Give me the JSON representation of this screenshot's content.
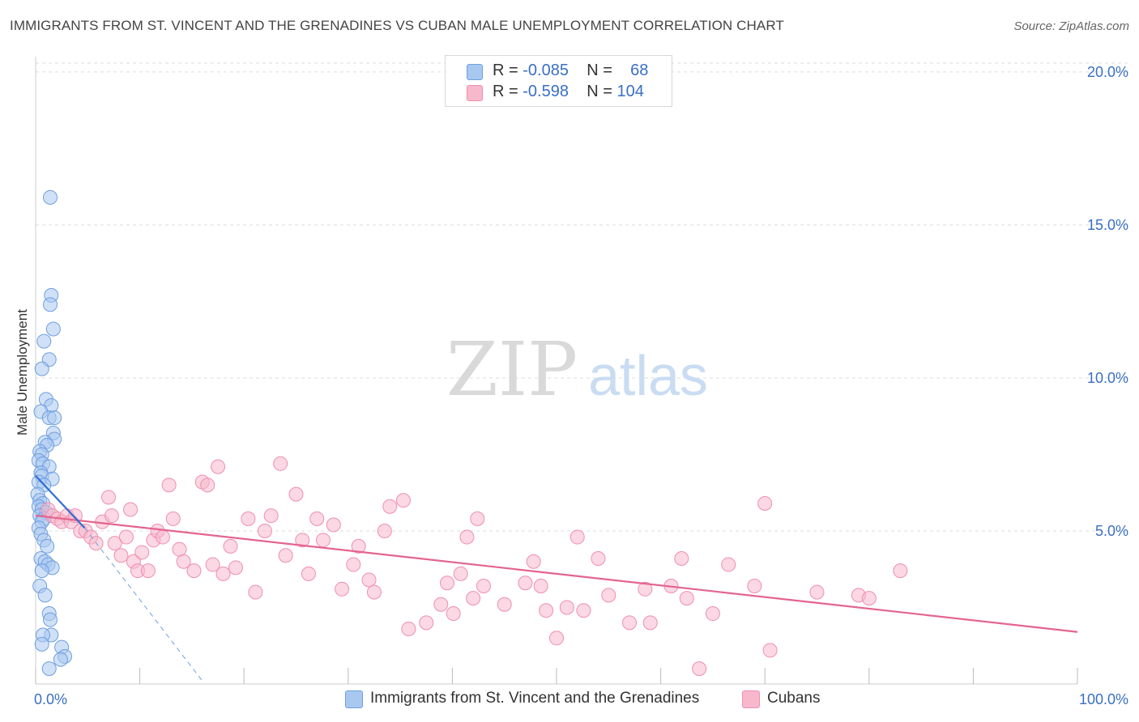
{
  "title": "IMMIGRANTS FROM ST. VINCENT AND THE GRENADINES VS CUBAN MALE UNEMPLOYMENT CORRELATION CHART",
  "source": "Source: ZipAtlas.com",
  "watermark": {
    "zip": "ZIP",
    "atlas": "atlas"
  },
  "legend": {
    "rows": [
      {
        "r_label": "R =",
        "r_value": "-0.085",
        "n_label": "N =",
        "n_value": "68"
      },
      {
        "r_label": "R =",
        "r_value": "-0.598",
        "n_label": "N =",
        "n_value": "104"
      }
    ]
  },
  "bottom_legend": {
    "series1": "Immigrants from St. Vincent and the Grenadines",
    "series2": "Cubans"
  },
  "colors": {
    "series1_fill": "#a9c8f0",
    "series1_stroke": "#6f9ee0",
    "series1_line": "#2f6fd1",
    "series2_fill": "#f7b8cc",
    "series2_stroke": "#ee8fae",
    "series2_line": "#e3648f",
    "tick_label": "#3a6fc4",
    "grid": "#dddddd"
  },
  "chart_data": {
    "type": "scatter",
    "xlabel": "",
    "ylabel": "Male Unemployment",
    "xlim": [
      0,
      100
    ],
    "ylim": [
      0,
      20.5
    ],
    "x_tick_labels": [
      {
        "value": 0,
        "label": "0.0%"
      },
      {
        "value": 100,
        "label": "100.0%"
      }
    ],
    "y_tick_labels": [
      {
        "value": 5,
        "label": "5.0%"
      },
      {
        "value": 10,
        "label": "10.0%"
      },
      {
        "value": 15,
        "label": "15.0%"
      },
      {
        "value": 20,
        "label": "20.0%"
      }
    ],
    "grid": true,
    "legend_position": "top-center",
    "series": [
      {
        "name": "Immigrants from St. Vincent and the Grenadines",
        "points": [
          [
            1.4,
            15.9
          ],
          [
            1.5,
            12.7
          ],
          [
            1.4,
            12.4
          ],
          [
            1.7,
            11.6
          ],
          [
            0.8,
            11.2
          ],
          [
            1.3,
            10.6
          ],
          [
            0.6,
            10.3
          ],
          [
            1.0,
            9.3
          ],
          [
            1.5,
            9.1
          ],
          [
            0.5,
            8.9
          ],
          [
            1.3,
            8.7
          ],
          [
            1.8,
            8.7
          ],
          [
            1.7,
            8.2
          ],
          [
            1.8,
            8.0
          ],
          [
            0.9,
            7.9
          ],
          [
            1.1,
            7.8
          ],
          [
            0.4,
            7.6
          ],
          [
            0.6,
            7.5
          ],
          [
            0.3,
            7.3
          ],
          [
            0.7,
            7.2
          ],
          [
            1.3,
            7.1
          ],
          [
            0.5,
            6.9
          ],
          [
            0.6,
            6.8
          ],
          [
            1.6,
            6.7
          ],
          [
            0.3,
            6.6
          ],
          [
            0.8,
            6.5
          ],
          [
            0.2,
            6.2
          ],
          [
            0.4,
            6.0
          ],
          [
            0.7,
            5.9
          ],
          [
            0.3,
            5.8
          ],
          [
            0.6,
            5.7
          ],
          [
            1.0,
            5.6
          ],
          [
            0.4,
            5.5
          ],
          [
            0.8,
            5.4
          ],
          [
            0.6,
            5.3
          ],
          [
            0.3,
            5.1
          ],
          [
            0.5,
            4.9
          ],
          [
            0.8,
            4.7
          ],
          [
            1.1,
            4.5
          ],
          [
            0.5,
            4.1
          ],
          [
            0.9,
            4.0
          ],
          [
            1.2,
            3.9
          ],
          [
            1.6,
            3.8
          ],
          [
            0.6,
            3.7
          ],
          [
            0.4,
            3.2
          ],
          [
            0.9,
            2.9
          ],
          [
            1.3,
            2.3
          ],
          [
            1.4,
            2.1
          ],
          [
            1.5,
            1.6
          ],
          [
            0.7,
            1.6
          ],
          [
            0.6,
            1.3
          ],
          [
            2.5,
            1.2
          ],
          [
            2.8,
            0.9
          ],
          [
            2.4,
            0.8
          ],
          [
            1.3,
            0.5
          ]
        ],
        "trend": {
          "x": [
            0,
            4.7
          ],
          "y": [
            6.8,
            5.1
          ]
        },
        "trend_extended": {
          "x": [
            4.7,
            16
          ],
          "y": [
            5.1,
            0.1
          ]
        }
      },
      {
        "name": "Cubans",
        "points": [
          [
            1.2,
            5.7
          ],
          [
            1.6,
            5.5
          ],
          [
            2.1,
            5.4
          ],
          [
            2.5,
            5.3
          ],
          [
            3.0,
            5.5
          ],
          [
            3.4,
            5.3
          ],
          [
            3.8,
            5.5
          ],
          [
            4.3,
            5.0
          ],
          [
            4.8,
            5.0
          ],
          [
            5.3,
            4.8
          ],
          [
            5.8,
            4.6
          ],
          [
            6.4,
            5.3
          ],
          [
            7.0,
            6.1
          ],
          [
            7.3,
            5.5
          ],
          [
            7.6,
            4.6
          ],
          [
            8.2,
            4.2
          ],
          [
            8.7,
            4.8
          ],
          [
            9.1,
            5.7
          ],
          [
            9.4,
            4.0
          ],
          [
            9.8,
            3.7
          ],
          [
            10.2,
            4.3
          ],
          [
            10.8,
            3.7
          ],
          [
            11.3,
            4.7
          ],
          [
            11.7,
            5.0
          ],
          [
            12.2,
            4.8
          ],
          [
            12.8,
            6.5
          ],
          [
            13.2,
            5.4
          ],
          [
            13.8,
            4.4
          ],
          [
            14.2,
            4.0
          ],
          [
            15.2,
            3.7
          ],
          [
            16.0,
            6.6
          ],
          [
            16.5,
            6.5
          ],
          [
            17.0,
            3.9
          ],
          [
            17.5,
            7.1
          ],
          [
            18.0,
            3.6
          ],
          [
            18.7,
            4.5
          ],
          [
            19.2,
            3.8
          ],
          [
            20.4,
            5.4
          ],
          [
            21.1,
            3.0
          ],
          [
            22.0,
            5.0
          ],
          [
            22.6,
            5.5
          ],
          [
            23.5,
            7.2
          ],
          [
            24.0,
            4.2
          ],
          [
            25.0,
            6.2
          ],
          [
            25.6,
            4.7
          ],
          [
            26.2,
            3.6
          ],
          [
            27.0,
            5.4
          ],
          [
            27.6,
            4.7
          ],
          [
            28.6,
            5.2
          ],
          [
            29.4,
            3.1
          ],
          [
            30.5,
            3.9
          ],
          [
            31.0,
            4.5
          ],
          [
            32.0,
            3.4
          ],
          [
            32.5,
            3.0
          ],
          [
            33.5,
            5.0
          ],
          [
            34.0,
            5.8
          ],
          [
            35.3,
            6.0
          ],
          [
            35.8,
            1.8
          ],
          [
            37.5,
            2.0
          ],
          [
            38.9,
            2.6
          ],
          [
            39.5,
            3.3
          ],
          [
            40.1,
            2.3
          ],
          [
            40.8,
            3.6
          ],
          [
            41.4,
            4.8
          ],
          [
            42.0,
            2.8
          ],
          [
            42.4,
            5.4
          ],
          [
            43.0,
            3.2
          ],
          [
            45.0,
            2.6
          ],
          [
            47.0,
            3.3
          ],
          [
            47.8,
            4.0
          ],
          [
            48.5,
            3.2
          ],
          [
            49.0,
            2.4
          ],
          [
            50.0,
            1.5
          ],
          [
            51.0,
            2.5
          ],
          [
            52.0,
            4.8
          ],
          [
            52.6,
            2.4
          ],
          [
            54.0,
            4.1
          ],
          [
            55.0,
            2.9
          ],
          [
            57.0,
            2.0
          ],
          [
            58.5,
            3.1
          ],
          [
            59.0,
            2.0
          ],
          [
            61.0,
            3.2
          ],
          [
            62.0,
            4.1
          ],
          [
            62.5,
            2.8
          ],
          [
            63.7,
            0.5
          ],
          [
            65.0,
            2.3
          ],
          [
            66.5,
            3.9
          ],
          [
            69.0,
            3.2
          ],
          [
            70.0,
            5.9
          ],
          [
            70.5,
            1.1
          ],
          [
            75.0,
            3.0
          ],
          [
            79.0,
            2.9
          ],
          [
            80.0,
            2.8
          ],
          [
            83.0,
            3.7
          ]
        ],
        "trend": {
          "x": [
            0,
            100
          ],
          "y": [
            5.5,
            1.7
          ]
        }
      }
    ]
  }
}
